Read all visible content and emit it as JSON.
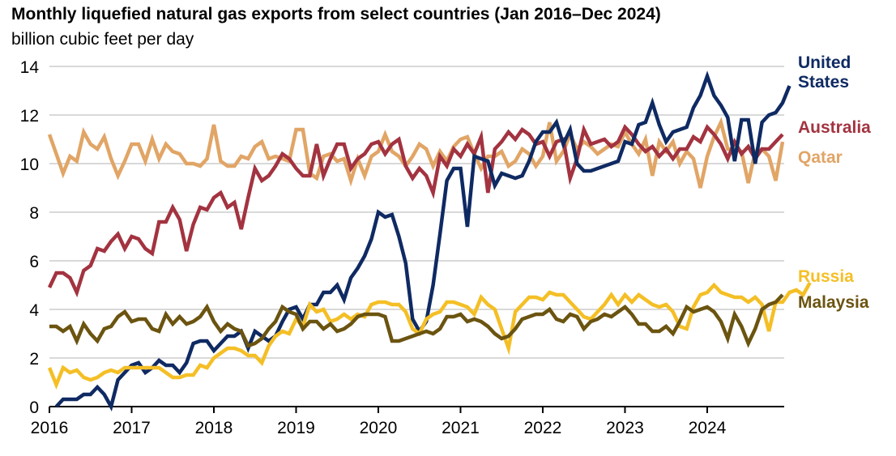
{
  "chart_data": {
    "type": "line",
    "title": "Monthly liquefied natural gas exports from select countries (Jan 2016–Dec 2024)",
    "ylabel": "billion cubic feet per day",
    "xlabel": "",
    "ylim": [
      0,
      14
    ],
    "yticks": [
      0,
      2,
      4,
      6,
      8,
      10,
      12,
      14
    ],
    "xlim": [
      "2016-01",
      "2024-12"
    ],
    "xticks": [
      "2016",
      "2017",
      "2018",
      "2019",
      "2020",
      "2021",
      "2022",
      "2023",
      "2024"
    ],
    "grid": true,
    "legend": "right, direct labels",
    "series": [
      {
        "name": "Qatar",
        "label_lines": [
          "Qatar"
        ],
        "color": "#E1A566",
        "values": [
          11.2,
          10.4,
          9.6,
          10.3,
          10.1,
          11.3,
          10.8,
          10.6,
          11.1,
          10.2,
          9.5,
          10.1,
          10.8,
          10.8,
          10.1,
          11.0,
          10.2,
          10.8,
          10.5,
          10.4,
          10.0,
          10.0,
          9.9,
          10.2,
          11.6,
          10.1,
          9.9,
          9.9,
          10.3,
          10.2,
          10.7,
          10.9,
          10.2,
          10.3,
          10.2,
          10.1,
          11.4,
          11.4,
          9.6,
          9.4,
          10.3,
          10.4,
          10.1,
          10.2,
          9.3,
          10.2,
          9.5,
          10.3,
          10.5,
          11.2,
          10.5,
          10.3,
          9.9,
          10.3,
          10.8,
          10.6,
          9.9,
          10.5,
          10.1,
          10.7,
          11.0,
          11.1,
          10.4,
          9.8,
          10.3,
          10.3,
          10.5,
          9.9,
          10.1,
          10.6,
          10.4,
          9.9,
          10.3,
          11.7,
          10.1,
          10.5,
          11.2,
          10.6,
          10.9,
          10.7,
          10.4,
          10.6,
          10.8,
          10.7,
          11.3,
          10.8,
          10.4,
          11.0,
          9.5,
          10.9,
          10.5,
          10.9,
          10.0,
          10.5,
          10.2,
          9.0,
          10.3,
          11.1,
          11.7,
          10.6,
          10.6,
          10.5,
          9.2,
          10.5,
          10.6,
          10.3,
          9.3,
          10.9
        ]
      },
      {
        "name": "Australia",
        "label_lines": [
          "Australia"
        ],
        "color": "#A33340",
        "values": [
          4.9,
          5.5,
          5.5,
          5.3,
          4.7,
          5.6,
          5.8,
          6.5,
          6.4,
          6.8,
          7.1,
          6.5,
          7.0,
          6.9,
          6.5,
          6.3,
          7.6,
          7.6,
          8.2,
          7.7,
          6.4,
          7.5,
          8.2,
          8.1,
          8.6,
          8.8,
          8.2,
          8.4,
          7.3,
          8.6,
          9.8,
          9.3,
          9.5,
          9.9,
          10.4,
          10.2,
          9.8,
          9.5,
          9.5,
          10.8,
          9.5,
          10.2,
          10.8,
          10.8,
          9.8,
          10.2,
          10.4,
          10.8,
          10.9,
          10.4,
          10.8,
          11.0,
          9.9,
          9.4,
          9.8,
          9.5,
          8.8,
          10.3,
          9.9,
          10.6,
          10.3,
          10.8,
          10.4,
          11.1,
          8.8,
          10.6,
          10.9,
          11.3,
          11.0,
          11.4,
          11.2,
          10.8,
          10.9,
          10.3,
          10.9,
          11.0,
          9.4,
          10.2,
          11.4,
          10.8,
          10.9,
          11.0,
          10.7,
          10.9,
          11.5,
          11.2,
          10.8,
          10.5,
          10.7,
          10.3,
          10.6,
          10.2,
          10.6,
          10.6,
          11.1,
          10.9,
          11.5,
          11.2,
          10.8,
          10.2,
          10.9,
          10.4,
          10.7,
          10.2,
          10.6,
          10.6,
          10.9,
          11.2
        ]
      },
      {
        "name": "United States",
        "label_lines": [
          "United",
          "States"
        ],
        "color": "#0F2A63",
        "values": [
          null,
          0.0,
          0.3,
          0.3,
          0.3,
          0.5,
          0.5,
          0.8,
          0.5,
          0.0,
          1.1,
          1.4,
          1.7,
          1.8,
          1.4,
          1.6,
          1.9,
          1.7,
          1.7,
          1.4,
          1.8,
          2.6,
          2.7,
          2.7,
          2.3,
          2.6,
          2.9,
          2.9,
          3.1,
          2.4,
          3.1,
          2.9,
          2.7,
          2.9,
          3.5,
          4.0,
          4.1,
          3.6,
          4.2,
          4.2,
          4.7,
          4.7,
          5.0,
          4.4,
          5.3,
          5.7,
          6.2,
          6.9,
          8.0,
          7.8,
          7.9,
          7.0,
          5.9,
          3.6,
          3.1,
          3.5,
          5.0,
          7.1,
          9.3,
          9.8,
          9.8,
          7.4,
          10.3,
          10.2,
          10.1,
          9.1,
          9.6,
          9.5,
          9.4,
          9.5,
          10.1,
          10.9,
          11.3,
          11.3,
          11.7,
          10.8,
          11.4,
          10.0,
          9.7,
          9.7,
          9.8,
          9.9,
          10.0,
          10.1,
          10.9,
          10.8,
          11.6,
          11.7,
          12.5,
          11.6,
          10.9,
          11.3,
          11.4,
          11.5,
          12.3,
          12.8,
          13.6,
          12.8,
          12.4,
          11.9,
          10.1,
          11.8,
          11.8,
          10.0,
          11.7,
          12.0,
          12.1,
          12.5,
          13.2
        ]
      },
      {
        "name": "Russia",
        "label_lines": [
          "Russia"
        ],
        "color": "#F4BF26",
        "values": [
          1.6,
          0.9,
          1.6,
          1.4,
          1.5,
          1.2,
          1.1,
          1.2,
          1.4,
          1.5,
          1.4,
          1.6,
          1.6,
          1.6,
          1.6,
          1.6,
          1.6,
          1.4,
          1.2,
          1.2,
          1.3,
          1.3,
          1.7,
          1.6,
          2.0,
          2.2,
          2.4,
          2.4,
          2.3,
          2.1,
          2.1,
          1.8,
          2.5,
          2.9,
          3.1,
          3.0,
          3.6,
          3.3,
          4.2,
          3.9,
          4.0,
          3.5,
          3.6,
          3.8,
          3.6,
          3.8,
          3.7,
          4.2,
          4.3,
          4.3,
          4.2,
          4.2,
          3.9,
          3.2,
          3.0,
          3.6,
          3.8,
          3.9,
          4.3,
          4.3,
          4.2,
          4.1,
          3.8,
          4.5,
          4.2,
          4.0,
          3.2,
          2.4,
          3.9,
          4.2,
          4.5,
          4.5,
          4.4,
          4.7,
          4.6,
          4.6,
          4.3,
          4.0,
          3.7,
          3.6,
          3.9,
          4.2,
          4.6,
          4.2,
          4.6,
          4.3,
          4.6,
          4.4,
          4.2,
          4.1,
          4.2,
          3.9,
          3.3,
          3.2,
          4.1,
          4.6,
          4.7,
          5.0,
          4.7,
          4.6,
          4.5,
          4.5,
          4.3,
          4.5,
          4.2,
          3.1,
          4.3,
          4.3,
          4.7,
          4.8,
          4.6,
          5.1
        ]
      },
      {
        "name": "Malaysia",
        "label_lines": [
          "Malaysia"
        ],
        "color": "#6B5410",
        "values": [
          3.3,
          3.3,
          3.1,
          3.3,
          2.7,
          3.4,
          3.0,
          2.7,
          3.2,
          3.3,
          3.7,
          3.9,
          3.5,
          3.6,
          3.6,
          3.2,
          3.1,
          3.8,
          3.4,
          3.7,
          3.4,
          3.5,
          3.7,
          4.1,
          3.5,
          3.1,
          3.4,
          3.2,
          3.1,
          2.5,
          2.6,
          2.8,
          3.2,
          3.5,
          4.1,
          3.9,
          3.8,
          3.2,
          3.5,
          3.5,
          3.2,
          3.4,
          3.1,
          3.2,
          3.4,
          3.7,
          3.8,
          3.8,
          3.8,
          3.7,
          2.7,
          2.7,
          2.8,
          2.9,
          3.0,
          3.1,
          3.0,
          3.2,
          3.7,
          3.7,
          3.8,
          3.5,
          3.6,
          3.5,
          3.3,
          3.0,
          2.8,
          2.9,
          3.2,
          3.6,
          3.7,
          3.8,
          3.8,
          4.0,
          3.6,
          3.5,
          3.8,
          3.7,
          3.2,
          3.5,
          3.6,
          3.8,
          3.7,
          3.9,
          4.1,
          3.8,
          3.4,
          3.4,
          3.1,
          3.1,
          3.3,
          3.0,
          3.5,
          4.1,
          3.9,
          4.0,
          4.1,
          3.9,
          3.5,
          2.8,
          3.8,
          3.3,
          2.6,
          3.2,
          4.0,
          4.2,
          4.3,
          4.6
        ]
      }
    ]
  }
}
